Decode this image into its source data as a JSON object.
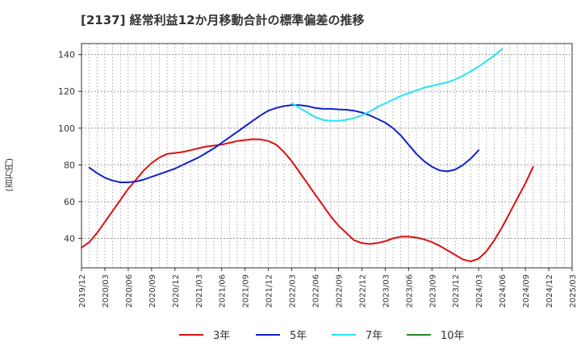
{
  "chart_data": {
    "type": "line",
    "title": "[2137]  経常利益12か月移動合計の標準偏差の推移",
    "ylabel": "(百万円)",
    "xlabel": "",
    "ylim": [
      24,
      146
    ],
    "yticks": [
      40,
      60,
      80,
      100,
      120,
      140
    ],
    "xlim": [
      "2019-12",
      "2025-03"
    ],
    "x_tick_labels": [
      "2019/12",
      "2020/03",
      "2020/06",
      "2020/09",
      "2020/12",
      "2021/03",
      "2021/06",
      "2021/09",
      "2021/12",
      "2022/03",
      "2022/06",
      "2022/09",
      "2022/12",
      "2023/03",
      "2023/06",
      "2023/09",
      "2023/12",
      "2024/03",
      "2024/06",
      "2024/09",
      "2024/12",
      "2025/03"
    ],
    "grid": true,
    "legend_position": "bottom",
    "series": [
      {
        "name": "3年",
        "color": "#dd1111",
        "points": [
          [
            "2019-12",
            35
          ],
          [
            "2020-01",
            38
          ],
          [
            "2020-02",
            43
          ],
          [
            "2020-03",
            49
          ],
          [
            "2020-04",
            55
          ],
          [
            "2020-05",
            61
          ],
          [
            "2020-06",
            67
          ],
          [
            "2020-07",
            72
          ],
          [
            "2020-08",
            77
          ],
          [
            "2020-09",
            81
          ],
          [
            "2020-10",
            84
          ],
          [
            "2020-11",
            86
          ],
          [
            "2020-12",
            86.5
          ],
          [
            "2021-01",
            87
          ],
          [
            "2021-02",
            88
          ],
          [
            "2021-03",
            89
          ],
          [
            "2021-04",
            90
          ],
          [
            "2021-05",
            90.5
          ],
          [
            "2021-06",
            91
          ],
          [
            "2021-07",
            92
          ],
          [
            "2021-08",
            93
          ],
          [
            "2021-09",
            93.5
          ],
          [
            "2021-10",
            94
          ],
          [
            "2021-11",
            93.8
          ],
          [
            "2021-12",
            93
          ],
          [
            "2022-01",
            91
          ],
          [
            "2022-02",
            87
          ],
          [
            "2022-03",
            82
          ],
          [
            "2022-04",
            76
          ],
          [
            "2022-05",
            70
          ],
          [
            "2022-06",
            64
          ],
          [
            "2022-07",
            58
          ],
          [
            "2022-08",
            52
          ],
          [
            "2022-09",
            47
          ],
          [
            "2022-10",
            43
          ],
          [
            "2022-11",
            39
          ],
          [
            "2022-12",
            37.5
          ],
          [
            "2023-01",
            37
          ],
          [
            "2023-02",
            37.5
          ],
          [
            "2023-03",
            38.5
          ],
          [
            "2023-04",
            40
          ],
          [
            "2023-05",
            41
          ],
          [
            "2023-06",
            41
          ],
          [
            "2023-07",
            40.5
          ],
          [
            "2023-08",
            39.5
          ],
          [
            "2023-09",
            38
          ],
          [
            "2023-10",
            36
          ],
          [
            "2023-11",
            33.5
          ],
          [
            "2023-12",
            31
          ],
          [
            "2024-01",
            28.5
          ],
          [
            "2024-02",
            27.5
          ],
          [
            "2024-03",
            29
          ],
          [
            "2024-04",
            33
          ],
          [
            "2024-05",
            39
          ],
          [
            "2024-06",
            46
          ],
          [
            "2024-07",
            54
          ],
          [
            "2024-08",
            62
          ],
          [
            "2024-09",
            70
          ],
          [
            "2024-10",
            79
          ]
        ]
      },
      {
        "name": "5年",
        "color": "#1122cc",
        "points": [
          [
            "2020-01",
            78.5
          ],
          [
            "2020-02",
            75.5
          ],
          [
            "2020-03",
            73
          ],
          [
            "2020-04",
            71.5
          ],
          [
            "2020-05",
            70.5
          ],
          [
            "2020-06",
            70.5
          ],
          [
            "2020-07",
            71
          ],
          [
            "2020-08",
            72
          ],
          [
            "2020-09",
            73.5
          ],
          [
            "2020-10",
            75
          ],
          [
            "2020-11",
            76.5
          ],
          [
            "2020-12",
            78
          ],
          [
            "2021-01",
            80
          ],
          [
            "2021-02",
            82
          ],
          [
            "2021-03",
            84
          ],
          [
            "2021-04",
            86.5
          ],
          [
            "2021-05",
            89
          ],
          [
            "2021-06",
            92
          ],
          [
            "2021-07",
            95
          ],
          [
            "2021-08",
            98
          ],
          [
            "2021-09",
            101
          ],
          [
            "2021-10",
            104
          ],
          [
            "2021-11",
            107
          ],
          [
            "2021-12",
            109.5
          ],
          [
            "2022-01",
            111
          ],
          [
            "2022-02",
            112
          ],
          [
            "2022-03",
            112.5
          ],
          [
            "2022-04",
            112.5
          ],
          [
            "2022-05",
            112
          ],
          [
            "2022-06",
            111
          ],
          [
            "2022-07",
            110.5
          ],
          [
            "2022-08",
            110.5
          ],
          [
            "2022-09",
            110.2
          ],
          [
            "2022-10",
            110
          ],
          [
            "2022-11",
            109.5
          ],
          [
            "2022-12",
            108.5
          ],
          [
            "2023-01",
            107
          ],
          [
            "2023-02",
            105
          ],
          [
            "2023-03",
            103
          ],
          [
            "2023-04",
            100
          ],
          [
            "2023-05",
            96
          ],
          [
            "2023-06",
            91
          ],
          [
            "2023-07",
            86
          ],
          [
            "2023-08",
            82
          ],
          [
            "2023-09",
            79
          ],
          [
            "2023-10",
            77
          ],
          [
            "2023-11",
            76.5
          ],
          [
            "2023-12",
            77.5
          ],
          [
            "2024-01",
            80
          ],
          [
            "2024-02",
            83.5
          ],
          [
            "2024-03",
            88
          ]
        ]
      },
      {
        "name": "7年",
        "color": "#22e5f0",
        "points": [
          [
            "2022-03",
            113.5
          ],
          [
            "2022-04",
            111
          ],
          [
            "2022-05",
            108.5
          ],
          [
            "2022-06",
            106
          ],
          [
            "2022-07",
            104.5
          ],
          [
            "2022-08",
            104
          ],
          [
            "2022-09",
            104
          ],
          [
            "2022-10",
            104.5
          ],
          [
            "2022-11",
            105.5
          ],
          [
            "2022-12",
            107
          ],
          [
            "2023-01",
            109
          ],
          [
            "2023-02",
            111.5
          ],
          [
            "2023-03",
            113.5
          ],
          [
            "2023-04",
            115.5
          ],
          [
            "2023-05",
            117.5
          ],
          [
            "2023-06",
            119
          ],
          [
            "2023-07",
            120.5
          ],
          [
            "2023-08",
            122
          ],
          [
            "2023-09",
            123
          ],
          [
            "2023-10",
            124
          ],
          [
            "2023-11",
            125
          ],
          [
            "2023-12",
            126.5
          ],
          [
            "2024-01",
            128.5
          ],
          [
            "2024-02",
            131
          ],
          [
            "2024-03",
            133.5
          ],
          [
            "2024-04",
            136.5
          ],
          [
            "2024-05",
            139.5
          ],
          [
            "2024-06",
            143
          ]
        ]
      },
      {
        "name": "10年",
        "color": "#228822",
        "points": []
      }
    ]
  }
}
